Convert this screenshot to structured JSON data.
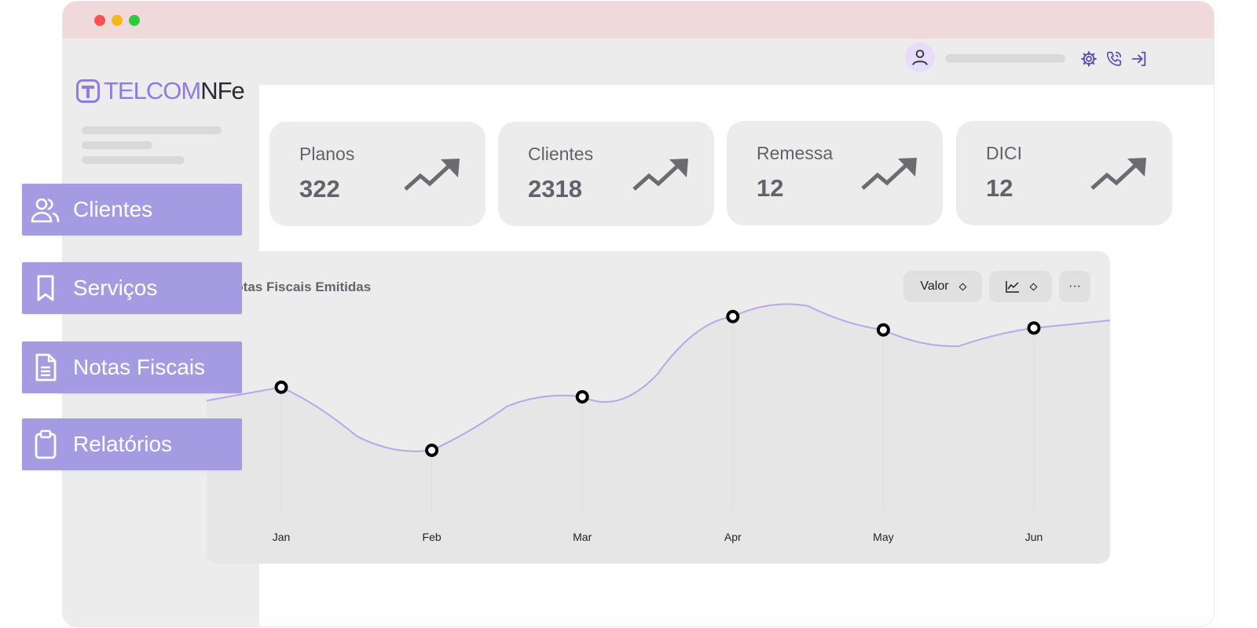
{
  "brand": {
    "part1": "TELCOM",
    "part2": "NFe"
  },
  "sidebar": {
    "items": [
      {
        "label": "Clientes",
        "icon": "users-icon"
      },
      {
        "label": "Serviços",
        "icon": "bookmark-icon"
      },
      {
        "label": "Notas Fiscais",
        "icon": "document-icon"
      },
      {
        "label": "Relatórios",
        "icon": "clipboard-icon"
      }
    ]
  },
  "header": {
    "icons": [
      "user-icon",
      "gear-icon",
      "phone-icon",
      "logout-icon"
    ]
  },
  "stats": [
    {
      "label": "Planos",
      "value": "322"
    },
    {
      "label": "Clientes",
      "value": "2318"
    },
    {
      "label": "Remessa",
      "value": "12"
    },
    {
      "label": "DICI",
      "value": "12"
    }
  ],
  "colors": {
    "accent": "#a59be3",
    "brand": "#8f7ae6",
    "line": "#b9a7ea",
    "card": "#ececec"
  },
  "chart": {
    "title": "Notas Fiscais Emitidas",
    "controls": {
      "metric": "Valor",
      "more": "···"
    }
  },
  "chart_data": {
    "type": "line",
    "title": "Notas Fiscais Emitidas",
    "categories": [
      "Jan",
      "Feb",
      "Mar",
      "Apr",
      "May",
      "Jun"
    ],
    "series": [
      {
        "values": [
          57,
          24,
          52,
          94,
          87,
          88
        ]
      }
    ],
    "ylim": [
      0,
      120
    ],
    "grid": false,
    "legend": "none"
  }
}
